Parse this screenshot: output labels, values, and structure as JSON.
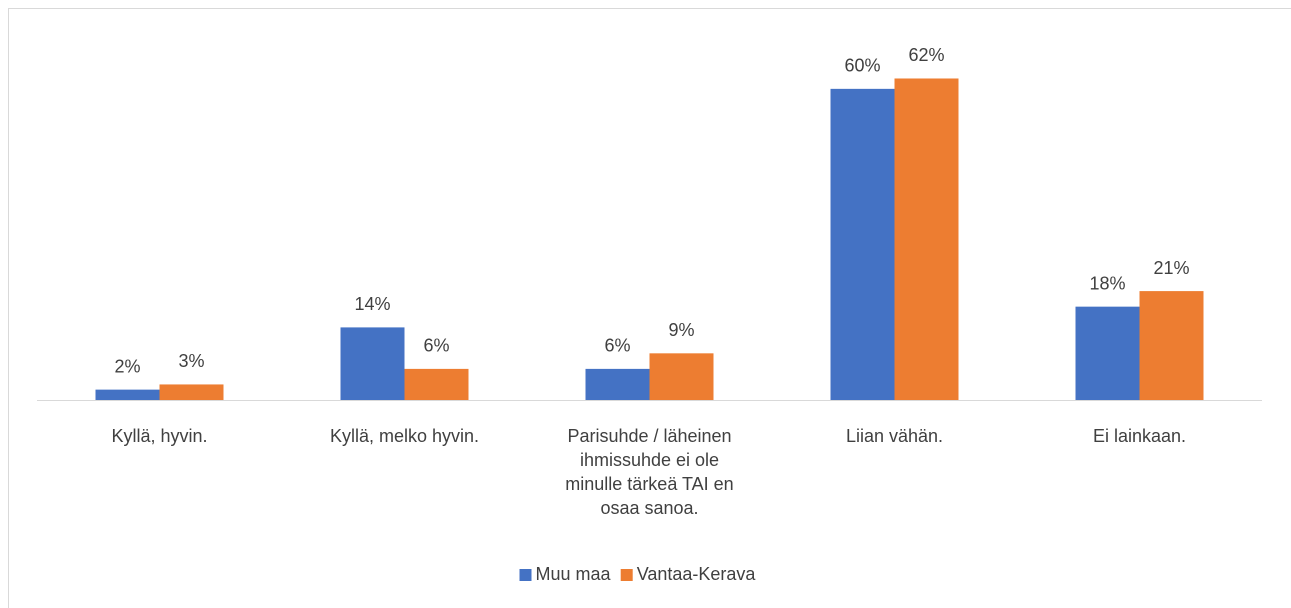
{
  "chart_data": {
    "type": "bar",
    "categories": [
      "Kyllä, hyvin.",
      "Kyllä, melko hyvin.",
      "Parisuhde / läheinen ihmissuhde ei ole minulle tärkeä TAI en osaa sanoa.",
      "Liian vähän.",
      "Ei lainkaan."
    ],
    "series": [
      {
        "name": "Muu maa",
        "color": "#4472c4",
        "values": [
          2,
          14,
          6,
          60,
          18
        ],
        "value_labels": [
          "2%",
          "14%",
          "6%",
          "60%",
          "18%"
        ]
      },
      {
        "name": "Vantaa-Kerava",
        "color": "#ed7d31",
        "values": [
          3,
          6,
          9,
          62,
          21
        ],
        "value_labels": [
          "3%",
          "6%",
          "9%",
          "62%",
          "21%"
        ]
      }
    ],
    "ylim": [
      0,
      70
    ],
    "legend": "bottom"
  }
}
